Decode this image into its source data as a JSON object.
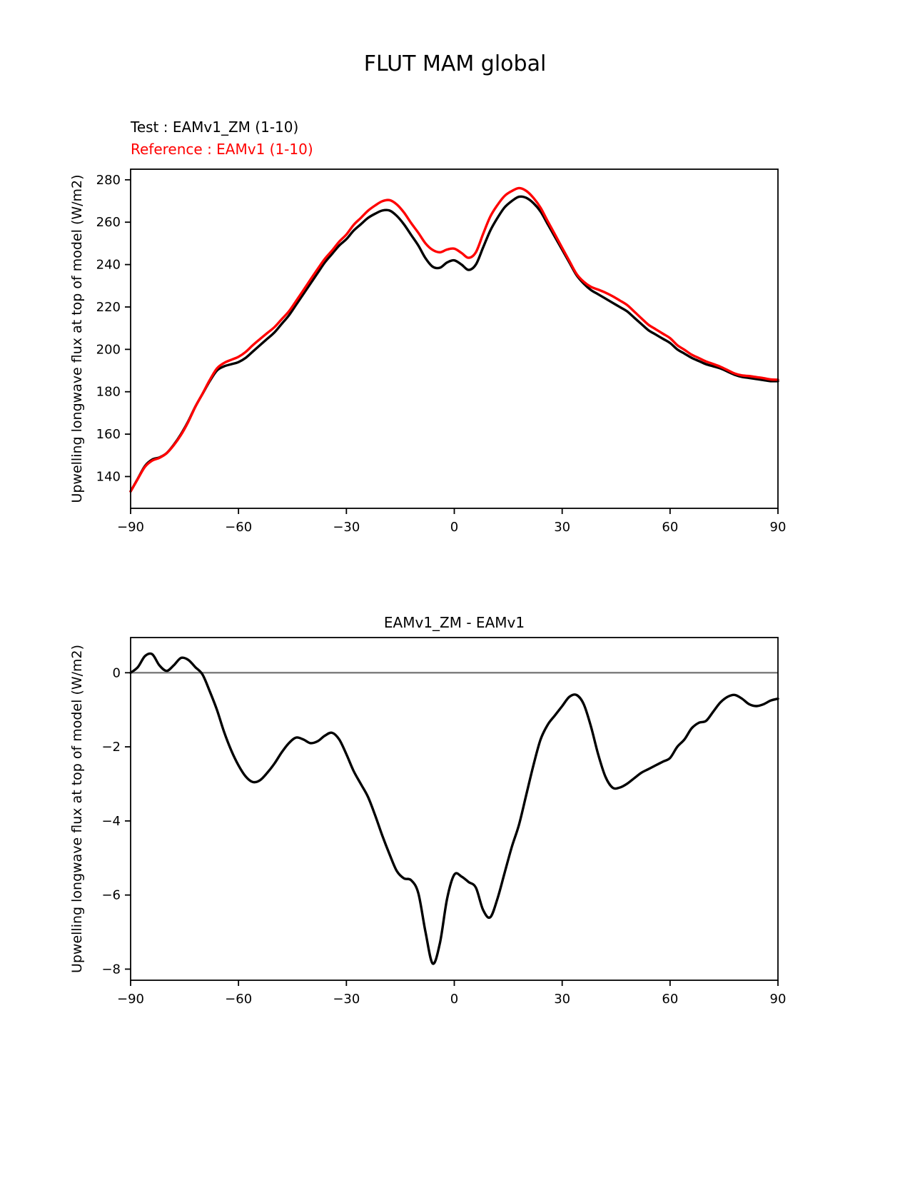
{
  "figure": {
    "title": "FLUT MAM global"
  },
  "chart_data": [
    {
      "type": "line",
      "title": "FLUT MAM global",
      "xlabel": "",
      "ylabel": "Upwelling longwave flux at top of model (W/m2)",
      "xlim": [
        -90,
        90
      ],
      "ylim": [
        125,
        285
      ],
      "xticks": [
        -90,
        -60,
        -30,
        0,
        30,
        60,
        90
      ],
      "yticks": [
        140,
        160,
        180,
        200,
        220,
        240,
        260,
        280
      ],
      "grid": false,
      "legend_position": "above-left",
      "legend": [
        {
          "label": "Test : EAMv1_ZM (1-10)",
          "color": "#000000"
        },
        {
          "label": "Reference : EAMv1 (1-10)",
          "color": "#ff0000"
        }
      ],
      "x": [
        -90,
        -88,
        -86,
        -84,
        -82,
        -80,
        -78,
        -76,
        -74,
        -72,
        -70,
        -68,
        -66,
        -64,
        -62,
        -60,
        -58,
        -56,
        -54,
        -52,
        -50,
        -48,
        -46,
        -44,
        -42,
        -40,
        -38,
        -36,
        -34,
        -32,
        -30,
        -28,
        -26,
        -24,
        -22,
        -20,
        -18,
        -16,
        -14,
        -12,
        -10,
        -8,
        -6,
        -4,
        -2,
        0,
        2,
        4,
        6,
        8,
        10,
        12,
        14,
        16,
        18,
        20,
        22,
        24,
        26,
        28,
        30,
        32,
        34,
        36,
        38,
        40,
        42,
        44,
        46,
        48,
        50,
        52,
        54,
        56,
        58,
        60,
        62,
        64,
        66,
        68,
        70,
        72,
        74,
        76,
        78,
        80,
        82,
        84,
        86,
        88,
        90
      ],
      "series": [
        {
          "name": "Test : EAMv1_ZM (1-10)",
          "color": "#000000",
          "values": [
            133,
            139,
            145,
            148,
            149,
            151,
            155,
            160,
            166,
            173,
            179,
            185,
            190,
            192,
            193,
            194,
            196,
            199,
            202,
            205,
            208,
            212,
            216,
            221,
            226,
            231,
            236,
            241,
            245,
            249,
            252,
            256,
            259,
            262,
            264,
            265.5,
            265.5,
            263,
            259,
            254,
            249,
            243,
            239,
            238.5,
            241,
            242,
            240,
            237.5,
            240,
            248,
            256,
            262,
            267,
            270,
            272,
            271.5,
            269,
            265,
            259,
            253,
            247,
            241,
            235,
            231,
            228,
            226,
            224,
            222,
            220,
            218,
            215,
            212,
            209,
            207,
            205,
            203,
            200,
            198,
            196,
            194.5,
            193,
            192,
            191,
            189.5,
            188,
            187,
            186.5,
            186,
            185.5,
            185,
            185
          ]
        },
        {
          "name": "Reference : EAMv1 (1-10)",
          "color": "#ff0000",
          "values": [
            133,
            138.9,
            144.6,
            147.5,
            148.8,
            151,
            154.8,
            159.6,
            165.7,
            172.9,
            179.1,
            185.5,
            191,
            193.6,
            195.1,
            196.5,
            198.8,
            202,
            204.9,
            207.7,
            210.5,
            214.2,
            217.9,
            222.8,
            227.8,
            232.9,
            237.9,
            242.7,
            246.6,
            250.8,
            254.2,
            258.7,
            262,
            265.4,
            267.9,
            269.9,
            270.4,
            268.4,
            264.6,
            259.6,
            255,
            250,
            246.9,
            245.8,
            247.1,
            247.5,
            245.5,
            243.2,
            245.8,
            254.4,
            262.6,
            268.1,
            272.4,
            274.7,
            276.1,
            274.8,
            271.5,
            266.8,
            260.4,
            254.2,
            247.9,
            241.7,
            235.6,
            231.9,
            229.5,
            228.2,
            226.8,
            225.1,
            223.1,
            221,
            217.9,
            214.7,
            211.6,
            209.5,
            207.4,
            205.3,
            202,
            199.8,
            197.5,
            195.9,
            194.3,
            193.1,
            191.8,
            190.2,
            188.6,
            187.7,
            187.4,
            186.9,
            186.4,
            185.8,
            185.7
          ]
        }
      ]
    },
    {
      "type": "line",
      "title": "EAMv1_ZM - EAMv1",
      "xlabel": "",
      "ylabel": "Upwelling longwave flux at top of model (W/m2)",
      "xlim": [
        -90,
        90
      ],
      "ylim": [
        -8.3,
        0.95
      ],
      "xticks": [
        -90,
        -60,
        -30,
        0,
        30,
        60,
        90
      ],
      "yticks": [
        0,
        -2,
        -4,
        -6,
        -8
      ],
      "grid": false,
      "zero_line": true,
      "zero_line_color": "#808080",
      "x": [
        -90,
        -88,
        -86,
        -84,
        -82,
        -80,
        -78,
        -76,
        -74,
        -72,
        -70,
        -68,
        -66,
        -64,
        -62,
        -60,
        -58,
        -56,
        -54,
        -52,
        -50,
        -48,
        -46,
        -44,
        -42,
        -40,
        -38,
        -36,
        -34,
        -32,
        -30,
        -28,
        -26,
        -24,
        -22,
        -20,
        -18,
        -16,
        -14,
        -12,
        -10,
        -8,
        -6,
        -4,
        -2,
        0,
        2,
        4,
        6,
        8,
        10,
        12,
        14,
        16,
        18,
        20,
        22,
        24,
        26,
        28,
        30,
        32,
        34,
        36,
        38,
        40,
        42,
        44,
        46,
        48,
        50,
        52,
        54,
        56,
        58,
        60,
        62,
        64,
        66,
        68,
        70,
        72,
        74,
        76,
        78,
        80,
        82,
        84,
        86,
        88,
        90
      ],
      "series": [
        {
          "name": "EAMv1_ZM - EAMv1",
          "color": "#000000",
          "values": [
            0,
            0.15,
            0.45,
            0.5,
            0.2,
            0.05,
            0.2,
            0.4,
            0.35,
            0.15,
            -0.05,
            -0.5,
            -1.0,
            -1.6,
            -2.1,
            -2.5,
            -2.8,
            -2.95,
            -2.9,
            -2.7,
            -2.45,
            -2.15,
            -1.9,
            -1.75,
            -1.8,
            -1.9,
            -1.85,
            -1.7,
            -1.62,
            -1.8,
            -2.2,
            -2.65,
            -3.0,
            -3.35,
            -3.85,
            -4.4,
            -4.9,
            -5.35,
            -5.55,
            -5.6,
            -5.95,
            -7.0,
            -7.85,
            -7.3,
            -6.1,
            -5.45,
            -5.5,
            -5.65,
            -5.8,
            -6.4,
            -6.6,
            -6.1,
            -5.4,
            -4.7,
            -4.1,
            -3.3,
            -2.5,
            -1.8,
            -1.4,
            -1.15,
            -0.9,
            -0.65,
            -0.6,
            -0.85,
            -1.45,
            -2.2,
            -2.8,
            -3.1,
            -3.1,
            -3.0,
            -2.85,
            -2.7,
            -2.6,
            -2.5,
            -2.4,
            -2.3,
            -2.0,
            -1.8,
            -1.5,
            -1.35,
            -1.3,
            -1.05,
            -0.8,
            -0.65,
            -0.6,
            -0.7,
            -0.85,
            -0.9,
            -0.85,
            -0.75,
            -0.7
          ]
        }
      ]
    }
  ]
}
